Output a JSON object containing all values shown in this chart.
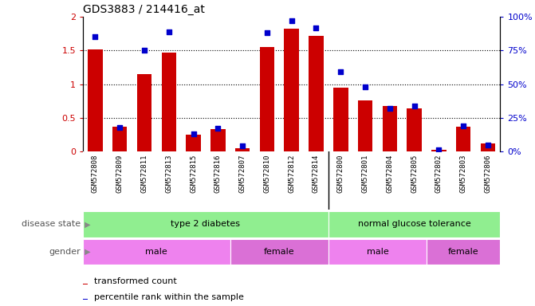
{
  "title": "GDS3883 / 214416_at",
  "samples": [
    "GSM572808",
    "GSM572809",
    "GSM572811",
    "GSM572813",
    "GSM572815",
    "GSM572816",
    "GSM572807",
    "GSM572810",
    "GSM572812",
    "GSM572814",
    "GSM572800",
    "GSM572801",
    "GSM572804",
    "GSM572805",
    "GSM572802",
    "GSM572803",
    "GSM572806"
  ],
  "bar_values": [
    1.52,
    0.37,
    1.15,
    1.47,
    0.25,
    0.33,
    0.05,
    1.55,
    1.82,
    1.72,
    0.95,
    0.76,
    0.67,
    0.64,
    0.02,
    0.37,
    0.12
  ],
  "dot_values": [
    0.85,
    0.18,
    0.75,
    0.89,
    0.13,
    0.17,
    0.04,
    0.88,
    0.97,
    0.92,
    0.59,
    0.48,
    0.32,
    0.34,
    0.01,
    0.19,
    0.05
  ],
  "bar_color": "#cc0000",
  "dot_color": "#0000cc",
  "ylim_left": [
    0,
    2
  ],
  "ylim_right": [
    0,
    1
  ],
  "yticks_left": [
    0,
    0.5,
    1.0,
    1.5,
    2.0
  ],
  "ytick_labels_left": [
    "0",
    "0.5",
    "1",
    "1.5",
    "2"
  ],
  "yticks_right": [
    0,
    0.25,
    0.5,
    0.75,
    1.0
  ],
  "ytick_labels_right": [
    "0%",
    "25%",
    "50%",
    "75%",
    "100%"
  ],
  "hlines": [
    0.5,
    1.0,
    1.5
  ],
  "disease_state_groups": [
    {
      "label": "type 2 diabetes",
      "start": 0,
      "end": 10,
      "color": "#90ee90"
    },
    {
      "label": "normal glucose tolerance",
      "start": 10,
      "end": 17,
      "color": "#90ee90"
    }
  ],
  "gender_groups": [
    {
      "label": "male",
      "start": 0,
      "end": 6,
      "color": "#ee82ee"
    },
    {
      "label": "female",
      "start": 6,
      "end": 10,
      "color": "#da70d6"
    },
    {
      "label": "male",
      "start": 10,
      "end": 14,
      "color": "#ee82ee"
    },
    {
      "label": "female",
      "start": 14,
      "end": 17,
      "color": "#da70d6"
    }
  ],
  "legend_bar_label": "transformed count",
  "legend_dot_label": "percentile rank within the sample",
  "row_label_disease": "disease state",
  "row_label_gender": "gender",
  "background_color": "#ffffff",
  "axis_bg_color": "#ffffff",
  "xtick_bg_color": "#dddddd"
}
